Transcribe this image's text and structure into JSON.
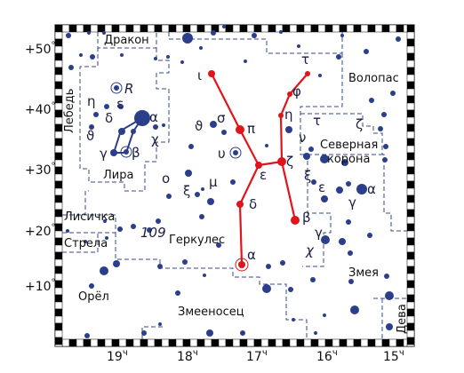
{
  "dec_labels": [
    {
      "deg": "+50",
      "unit": "°"
    },
    {
      "deg": "+40",
      "unit": "°"
    },
    {
      "deg": "+30",
      "unit": "°"
    },
    {
      "deg": "+20",
      "unit": "°"
    },
    {
      "deg": "+10",
      "unit": "°"
    }
  ],
  "ra_labels": [
    {
      "hours": "19",
      "unit": "ч"
    },
    {
      "hours": "18",
      "unit": "ч"
    },
    {
      "hours": "17",
      "unit": "ч"
    },
    {
      "hours": "16",
      "unit": "ч"
    },
    {
      "hours": "15",
      "unit": "ч"
    }
  ],
  "constellations": [
    "Дракон",
    "Лебедь",
    "Лира",
    "Лисичка",
    "Стрела",
    "Орёл",
    "Геркулес",
    "Змееносец",
    "Волопас",
    "Северная",
    "корона",
    "Змея",
    "Дева"
  ],
  "hercules_star_labels": [
    "ι",
    "σ",
    "π",
    "η",
    "τ",
    "φ",
    "ε",
    "ζ",
    "δ",
    "β",
    "α"
  ],
  "star_labels": [
    "ϑ",
    "υ",
    "ο",
    "ξ",
    "μ",
    "ε",
    "η",
    "δ",
    "ϑ",
    "α",
    "χ",
    "γ",
    "β",
    "R",
    "τ",
    "ζ",
    "ν",
    "ξ",
    "ε",
    "α",
    "γ",
    "γ",
    "χ",
    "109"
  ]
}
